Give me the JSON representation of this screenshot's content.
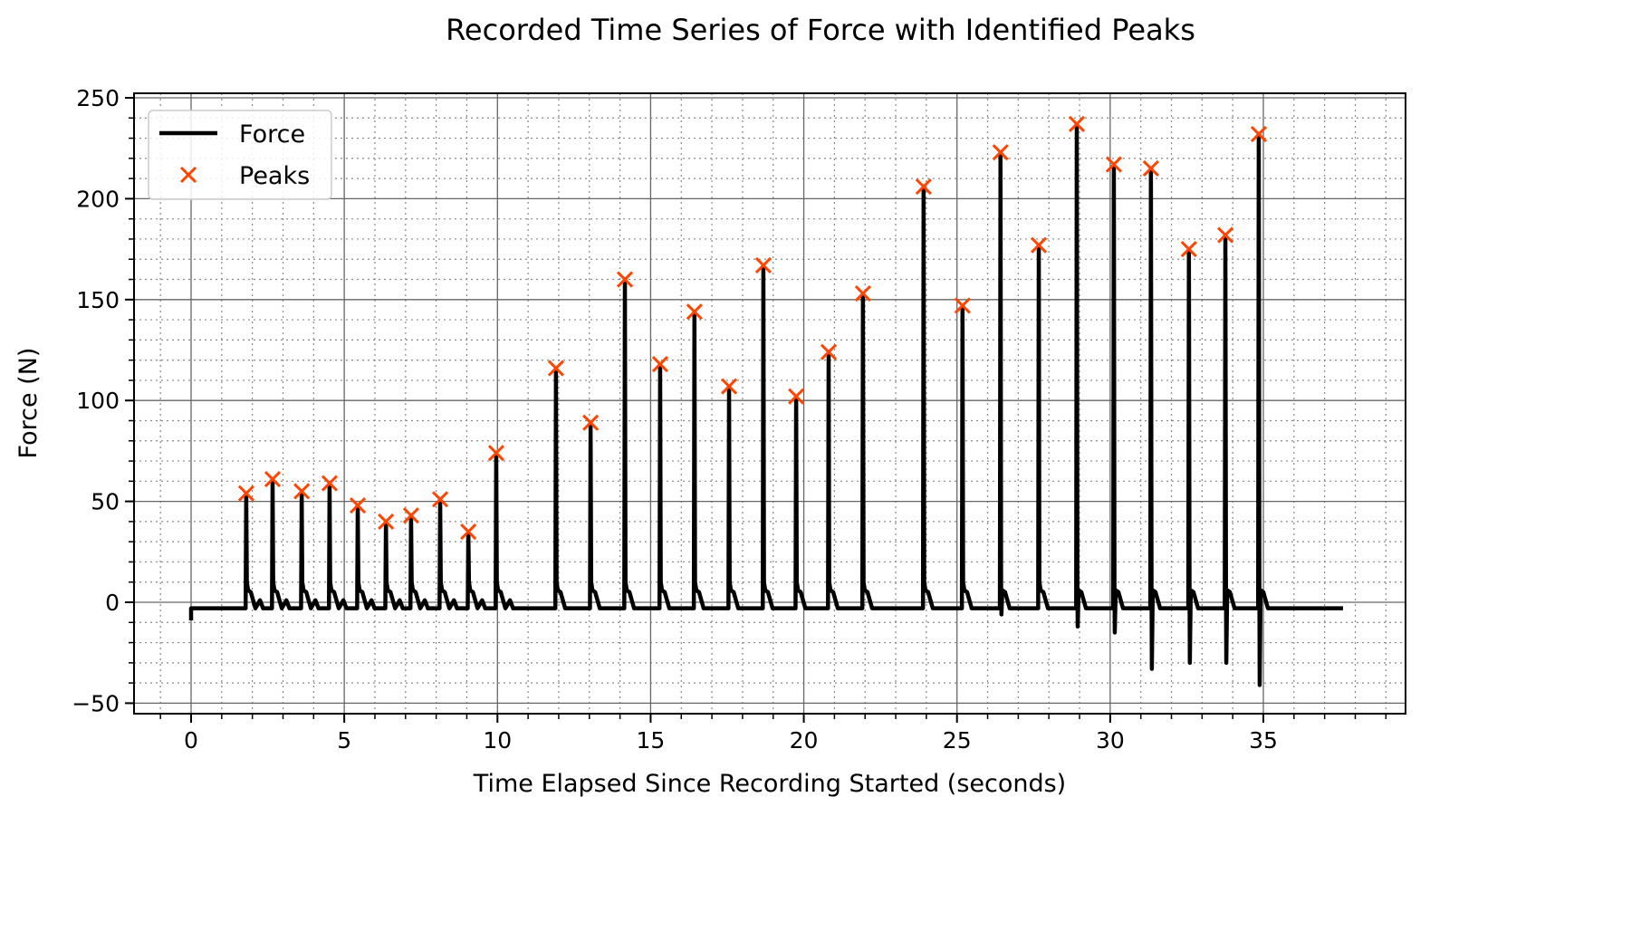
{
  "chart_data": {
    "type": "line",
    "title": "Recorded Time Series of Force with Identified Peaks",
    "xlabel": "Time Elapsed Since Recording Started (seconds)",
    "ylabel": "Force (N)",
    "xlim": [
      -1.86,
      39.6
    ],
    "ylim": [
      -55,
      252
    ],
    "xticks": [
      0,
      5,
      10,
      15,
      20,
      25,
      30,
      35
    ],
    "xtick_labels": [
      "0",
      "5",
      "10",
      "15",
      "20",
      "25",
      "30",
      "35"
    ],
    "yticks": [
      -50,
      0,
      50,
      100,
      150,
      200,
      250
    ],
    "ytick_labels": [
      "−50",
      "0",
      "50",
      "100",
      "150",
      "200",
      "250"
    ],
    "grid": "major solid, minor dotted (x every 1, y every 10)",
    "legend": {
      "placement": "top-left",
      "entries": [
        "Force",
        "Peaks"
      ]
    },
    "series": [
      {
        "name": "Force",
        "color": "#000000",
        "baseline": -3,
        "end_time": 37.6,
        "negative_spikes": [
          [
            0,
            -9
          ],
          [
            23.93,
            -14
          ],
          [
            26.42,
            -6
          ],
          [
            28.91,
            -12
          ],
          [
            30.12,
            -15
          ],
          [
            31.33,
            -33
          ],
          [
            32.57,
            -30
          ],
          [
            33.76,
            -30
          ],
          [
            34.85,
            -41
          ]
        ]
      },
      {
        "name": "Peaks",
        "color": "#ff4500",
        "marker": "x",
        "x": [
          1.8,
          2.66,
          3.61,
          4.52,
          5.44,
          6.36,
          7.18,
          8.13,
          9.05,
          9.96,
          11.91,
          13.04,
          14.16,
          15.31,
          16.43,
          17.56,
          18.68,
          19.75,
          20.81,
          21.93,
          23.91,
          25.18,
          26.42,
          27.67,
          28.91,
          30.12,
          31.33,
          32.57,
          33.76,
          34.85
        ],
        "y": [
          54,
          61,
          55,
          59,
          48,
          40,
          43,
          51,
          35,
          74,
          116,
          89,
          160,
          118,
          144,
          107,
          167,
          102,
          124,
          153,
          206,
          147,
          223,
          177,
          237,
          217,
          215,
          175,
          182,
          232
        ]
      }
    ]
  }
}
